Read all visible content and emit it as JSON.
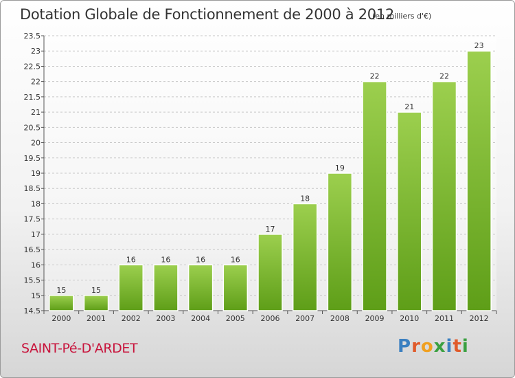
{
  "title": "Dotation Globale de Fonctionnement de 2000 à 2012",
  "subtitle": "(en milliers d'€)",
  "commune": "SAINT-Pé-D'ARDET",
  "logo": {
    "letters": [
      "P",
      "r",
      "o",
      "x",
      "i",
      "t",
      "i"
    ],
    "colors": [
      "#3a7fc0",
      "#e05a2a",
      "#f0a020",
      "#3aa040",
      "#3a7fc0",
      "#e05a2a",
      "#3aa040"
    ]
  },
  "colors": {
    "bar_top": "#9ccf4e",
    "bar_bottom": "#5e9e18",
    "commune": "#c8143c"
  },
  "chart_data": {
    "type": "bar",
    "categories": [
      "2000",
      "2001",
      "2002",
      "2003",
      "2004",
      "2005",
      "2006",
      "2007",
      "2008",
      "2009",
      "2010",
      "2011",
      "2012"
    ],
    "values": [
      15,
      15,
      16,
      16,
      16,
      16,
      17,
      18,
      19,
      22,
      21,
      22,
      23
    ],
    "data_labels": [
      "15",
      "15",
      "16",
      "16",
      "16",
      "16",
      "17",
      "18",
      "19",
      "22",
      "21",
      "22",
      "23"
    ],
    "ylim": [
      14.5,
      23.5
    ],
    "yticks": [
      14.5,
      15,
      15.5,
      16,
      16.5,
      17,
      17.5,
      18,
      18.5,
      19,
      19.5,
      20,
      20.5,
      21,
      21.5,
      22,
      22.5,
      23,
      23.5
    ],
    "ytick_labels": [
      "14.5",
      "15",
      "15.5",
      "16",
      "16.5",
      "17",
      "17.5",
      "18",
      "18.5",
      "19",
      "19.5",
      "20",
      "20.5",
      "21",
      "21.5",
      "22",
      "22.5",
      "23",
      "23.5"
    ],
    "grid": true
  }
}
